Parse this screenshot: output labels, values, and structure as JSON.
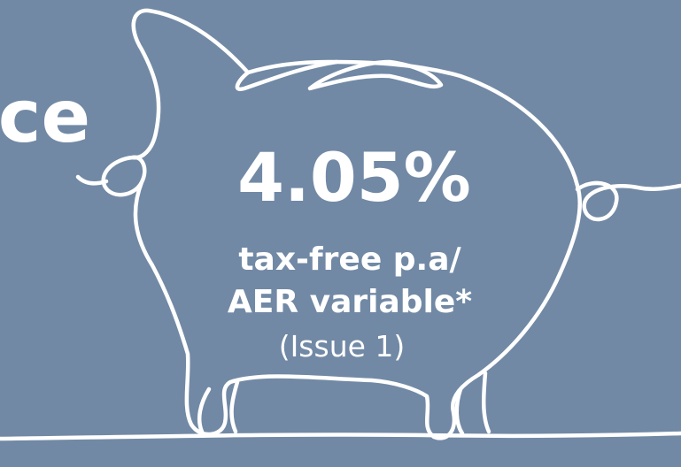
{
  "headline_fragment": "ce",
  "rate": "4.05%",
  "rate_description": [
    "tax-free p.a/",
    "AER variable*"
  ],
  "issue": "(Issue 1)"
}
